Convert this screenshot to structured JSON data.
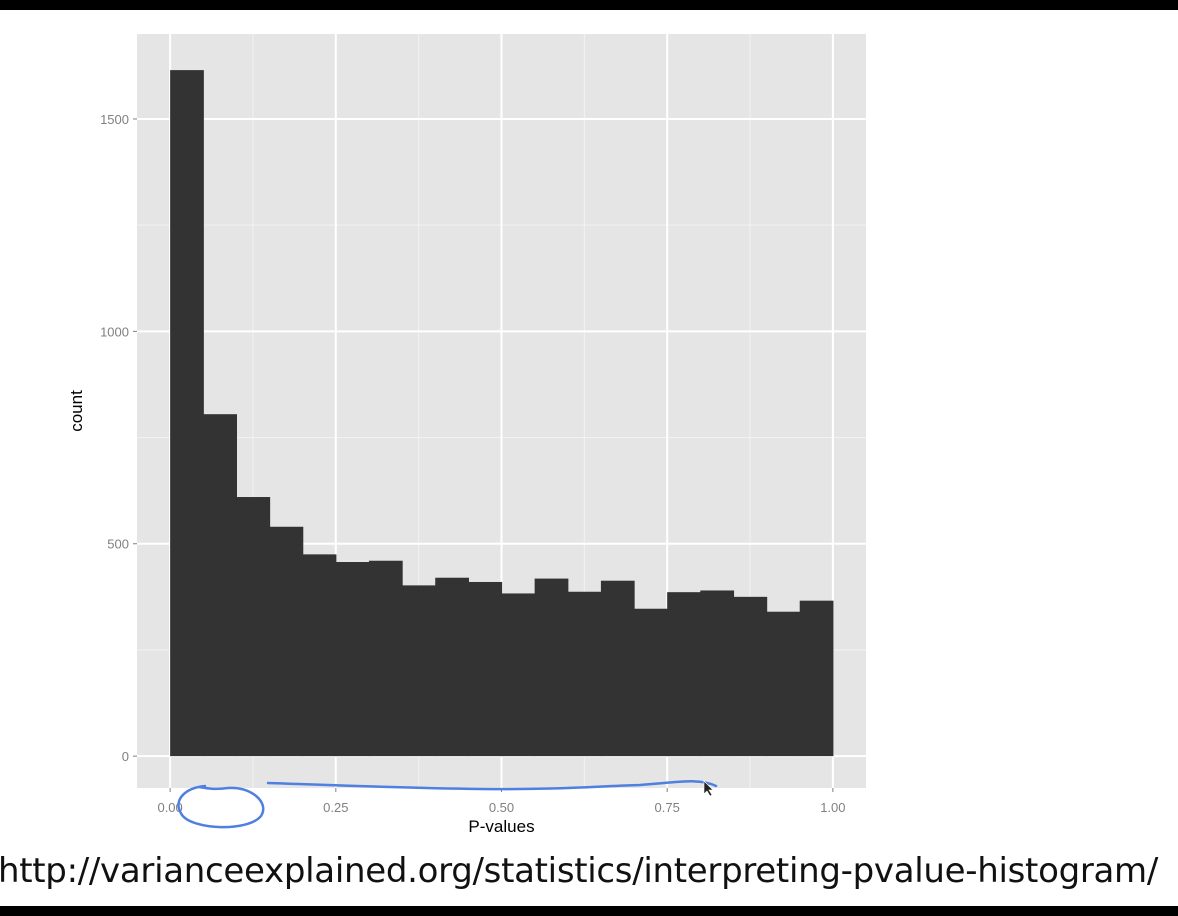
{
  "chart_data": {
    "type": "bar",
    "xlabel": "P-values",
    "ylabel": "count",
    "x_ticks": [
      "0.00",
      "0.25",
      "0.50",
      "0.75",
      "1.00"
    ],
    "y_ticks": [
      "0",
      "500",
      "1000",
      "1500"
    ],
    "xlim": [
      -0.05,
      1.05
    ],
    "ylim": [
      -75,
      1700
    ],
    "grid": true,
    "bin_width": 0.05,
    "bins_start": [
      0.0,
      0.05,
      0.1,
      0.15,
      0.2,
      0.25,
      0.3,
      0.35,
      0.4,
      0.45,
      0.5,
      0.55,
      0.6,
      0.65,
      0.7,
      0.75,
      0.8,
      0.85,
      0.9,
      0.95
    ],
    "values": [
      1615,
      805,
      610,
      540,
      475,
      457,
      460,
      402,
      420,
      410,
      383,
      418,
      387,
      413,
      347,
      386,
      390,
      375,
      340,
      366
    ]
  },
  "colors": {
    "panel": "#e5e5e5",
    "grid_major": "#ffffff",
    "bars": "#333333",
    "annotation": "#4f7fe0"
  },
  "caption": "http://varianceexplained.org/statistics/interpreting-pvalue-histogram/"
}
